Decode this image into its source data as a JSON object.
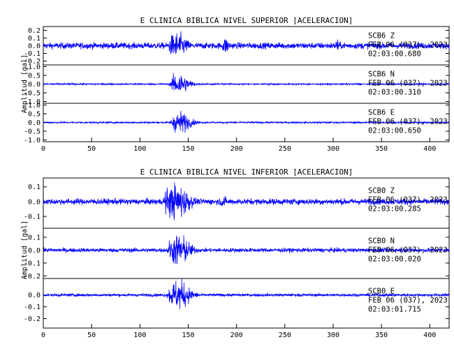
{
  "figures": [
    {
      "title": "E CLINICA BIBLICA NIVEL SUPERIOR [ACELERACION]",
      "ylabel": "Amplitud [gal]"
    },
    {
      "title": "E CLINICA BIBLICA NIVEL INFERIOR [ACELERACION]",
      "ylabel": "Amplitud [gal]"
    }
  ],
  "chart_data": [
    {
      "type": "line",
      "title": "E CLINICA BIBLICA NIVEL SUPERIOR [ACELERACION]",
      "ylabel": "Amplitud [gal]",
      "xlabel": "",
      "xlim": [
        0,
        420
      ],
      "x_ticks": [
        "0",
        "50",
        "100",
        "150",
        "200",
        "250",
        "300",
        "350",
        "400"
      ],
      "line_color": "#0000ff",
      "grid": false,
      "panels": [
        {
          "station": "SCB6",
          "channel": "Z",
          "date": "FEB 06 (037), 2023",
          "time": "02:03:00.680",
          "ylim": [
            -0.25,
            0.25
          ],
          "y_ticks": [
            "0.2",
            "0.1",
            "0.0",
            "-0.1",
            "-0.2"
          ],
          "noise": 0.05,
          "peak": 0.22,
          "events": [
            [
              130,
              147,
              0.22
            ],
            [
              185,
              192,
              0.14
            ],
            [
              302,
              306,
              0.12
            ]
          ]
        },
        {
          "station": "SCB6",
          "channel": "N",
          "date": "FEB 06 (037), 2023",
          "time": "02:03:00.310",
          "ylim": [
            -1.1,
            1.1
          ],
          "y_ticks": [
            "1.0",
            "0.5",
            "0.0",
            "-0.5",
            "-1.0"
          ],
          "noise": 0.06,
          "peak": 0.85,
          "events": [
            [
              133,
              148,
              0.85
            ]
          ]
        },
        {
          "station": "SCB6",
          "channel": "E",
          "date": "FEB 06 (037), 2023",
          "time": "02:03:00.650",
          "ylim": [
            -1.1,
            1.1
          ],
          "y_ticks": [
            "1.0",
            "0.5",
            "0.0",
            "-0.5",
            "-1.0"
          ],
          "noise": 0.06,
          "peak": 0.8,
          "events": [
            [
              133,
              150,
              0.8
            ]
          ]
        }
      ]
    },
    {
      "type": "line",
      "title": "E CLINICA BIBLICA NIVEL INFERIOR [ACELERACION]",
      "ylabel": "Amplitud [gal]",
      "xlabel": "",
      "xlim": [
        0,
        420
      ],
      "x_ticks": [
        "0",
        "50",
        "100",
        "150",
        "200",
        "250",
        "300",
        "350",
        "400"
      ],
      "line_color": "#0000ff",
      "grid": false,
      "panels": [
        {
          "station": "SCB0",
          "channel": "Z",
          "date": "FEB 06 (037), 2023",
          "time": "02:03:00.285",
          "ylim": [
            -0.18,
            0.16
          ],
          "y_ticks": [
            "0.1",
            "0.0",
            "-0.1"
          ],
          "noise": 0.025,
          "peak": 0.15,
          "events": [
            [
              125,
              150,
              0.15
            ],
            [
              182,
              190,
              0.05
            ]
          ]
        },
        {
          "station": "SCB0",
          "channel": "N",
          "date": "FEB 06 (037), 2023",
          "time": "02:03:00.020",
          "ylim": [
            -0.22,
            0.17
          ],
          "y_ticks": [
            "0.1",
            "0.0",
            "-0.1",
            "-0.2"
          ],
          "noise": 0.02,
          "peak": 0.16,
          "events": [
            [
              130,
              150,
              0.16
            ]
          ]
        },
        {
          "station": "SCB0",
          "channel": "E",
          "date": "FEB 06 (037), 2023",
          "time": "02:03:01.715",
          "ylim": [
            -0.28,
            0.14
          ],
          "y_ticks": [
            "0.0",
            "-0.1",
            "-0.2"
          ],
          "noise": 0.015,
          "peak": 0.16,
          "events": [
            [
              130,
              150,
              0.16
            ]
          ]
        }
      ]
    }
  ]
}
